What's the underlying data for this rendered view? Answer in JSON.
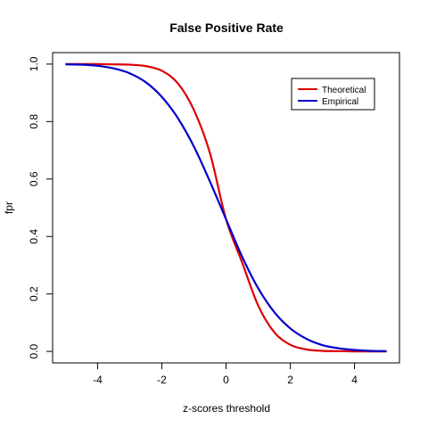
{
  "chart_data": {
    "type": "line",
    "title": "False Positive Rate",
    "xlabel": "z-scores threshold",
    "ylabel": "fpr",
    "xlim": [
      -5,
      5
    ],
    "ylim": [
      0,
      1
    ],
    "x_ticks": [
      -4,
      -2,
      0,
      2,
      4
    ],
    "y_ticks": [
      0.0,
      0.2,
      0.4,
      0.6,
      0.8,
      1.0
    ],
    "x_tick_labels": [
      "-4",
      "-2",
      "0",
      "2",
      "4"
    ],
    "y_tick_labels": [
      "0.0",
      "0.2",
      "0.4",
      "0.6",
      "0.8",
      "1.0"
    ],
    "grid": false,
    "legend_position": "top-right",
    "x": [
      -5,
      -4.5,
      -4,
      -3.5,
      -3,
      -2.5,
      -2,
      -1.5,
      -1,
      -0.5,
      0,
      0.5,
      1,
      1.5,
      2,
      2.5,
      3,
      3.5,
      4,
      4.5,
      5
    ],
    "series": [
      {
        "name": "Theoretical",
        "color": "#dd0000",
        "values": [
          1.0,
          1.0,
          1.0,
          0.999,
          0.998,
          0.993,
          0.977,
          0.933,
          0.84,
          0.69,
          0.46,
          0.31,
          0.16,
          0.067,
          0.023,
          0.007,
          0.002,
          0.001,
          0.0,
          0.0,
          0.0
        ]
      },
      {
        "name": "Empirical",
        "color": "#0000cc",
        "values": [
          0.999,
          0.998,
          0.994,
          0.985,
          0.968,
          0.937,
          0.886,
          0.812,
          0.713,
          0.591,
          0.46,
          0.33,
          0.22,
          0.137,
          0.08,
          0.044,
          0.022,
          0.011,
          0.005,
          0.002,
          0.001
        ]
      }
    ]
  }
}
